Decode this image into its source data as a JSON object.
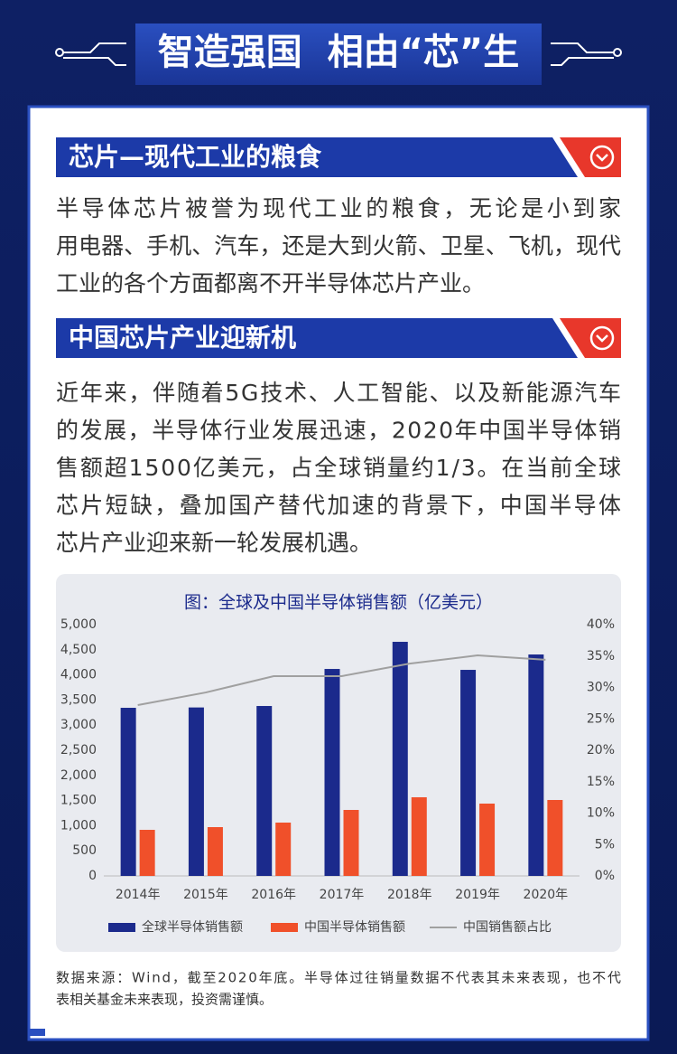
{
  "header": {
    "title": "智造强国  相由“芯”生"
  },
  "sections": [
    {
      "heading": "芯片—现代工业的粮食",
      "lines": [
        "半导体芯片被誉为现代工业的粮食，无论是小到家",
        "用电器、手机、汽车，还是大到火箭、卫星、飞机，现代",
        "工业的各个方面都离不开半导体芯片产业。"
      ]
    },
    {
      "heading": "中国芯片产业迎新机",
      "lines": [
        "近年来，伴随着5G技术、人工智能、以及新能源汽车",
        "的发展，半导体行业发展迅速，2020年中国半导体销",
        "售额超1500亿美元，占全球销量约1/3。在当前全球",
        "芯片短缺，叠加国产替代加速的背景下，中国半导体",
        "芯片产业迎来新一轮发展机遇。"
      ]
    }
  ],
  "chart_data": {
    "type": "bar",
    "title": "图：全球及中国半导体销售额（亿美元）",
    "categories": [
      "2014年",
      "2015年",
      "2016年",
      "2017年",
      "2018年",
      "2019年",
      "2020年"
    ],
    "series": [
      {
        "name": "全球半导体销售额",
        "color": "#1b2a8c",
        "values": [
          3345,
          3352,
          3381,
          4118,
          4658,
          4100,
          4406
        ]
      },
      {
        "name": "中国半导体销售额",
        "color": "#f0502a",
        "values": [
          917,
          971,
          1061,
          1313,
          1565,
          1439,
          1511
        ]
      },
      {
        "name": "中国销售额占比",
        "color": "#a0a0a0",
        "type": "line",
        "axis": "y2",
        "values": [
          27.2,
          29.2,
          31.8,
          31.8,
          33.8,
          35.1,
          34.4
        ]
      }
    ],
    "ylim": [
      0,
      5000
    ],
    "yticks": [
      0,
      {
        "value": 500,
        "label": "500"
      },
      {
        "value": 1000,
        "label": "1,000"
      },
      {
        "value": 1500,
        "label": "1,500"
      },
      {
        "value": 2000,
        "label": "2,000"
      },
      {
        "value": 2500,
        "label": "2,500"
      },
      {
        "value": 3000,
        "label": "3,000"
      },
      {
        "value": 3500,
        "label": "3,500"
      },
      {
        "value": 4000,
        "label": "4,000"
      },
      {
        "value": 4500,
        "label": "4,500"
      },
      {
        "value": 5000,
        "label": "5,000"
      }
    ],
    "y2lim": [
      0,
      40
    ],
    "y2ticks": [
      {
        "value": 0,
        "label": "0%"
      },
      {
        "value": 5,
        "label": "5%"
      },
      {
        "value": 10,
        "label": "10%"
      },
      {
        "value": 15,
        "label": "15%"
      },
      {
        "value": 20,
        "label": "20%"
      },
      {
        "value": 25,
        "label": "25%"
      },
      {
        "value": 30,
        "label": "30%"
      },
      {
        "value": 35,
        "label": "35%"
      },
      {
        "value": 40,
        "label": "40%"
      }
    ],
    "grid": false
  },
  "footnote": {
    "lines": [
      "数据来源：Wind，截至2020年底。半导体过往销量数据不代表其未来表现，也不代",
      "表相关基金未来表现，投资需谨慎。"
    ]
  }
}
